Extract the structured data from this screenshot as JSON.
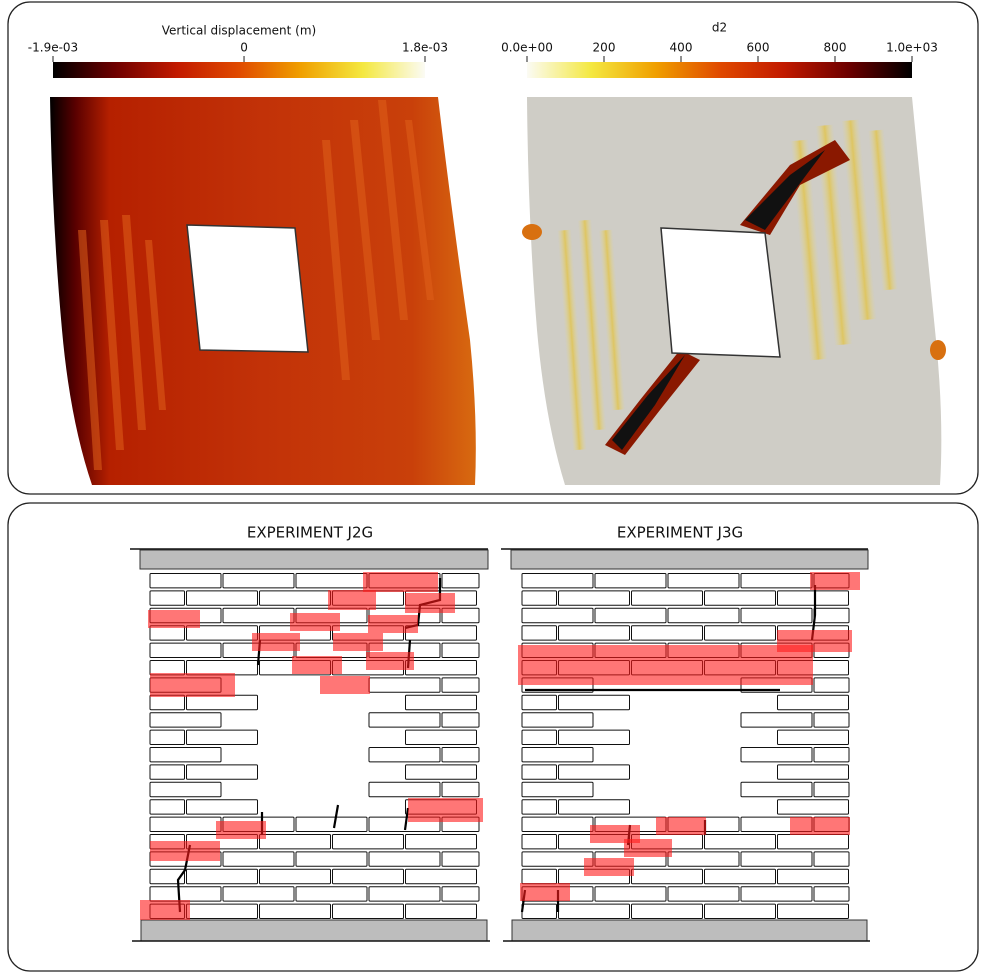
{
  "top_panel": {
    "colorbars": [
      {
        "title": "Vertical displacement (m)",
        "range": [
          -0.0019,
          0.0018
        ],
        "ticks": [
          {
            "value": -0.0019,
            "label": "-1.9e-03"
          },
          0,
          {
            "value": 0.0018,
            "label": "1.8e-03"
          }
        ],
        "colors": [
          "#000000",
          "#6e0000",
          "#c21a00",
          "#e04a00",
          "#f0a000",
          "#f4e840",
          "#fbfbf4"
        ]
      },
      {
        "title": "d2",
        "range": [
          0,
          1000
        ],
        "ticks": [
          {
            "value": 0,
            "label": "0.0e+00"
          },
          200,
          400,
          600,
          800,
          {
            "value": 1000,
            "label": "1.0e+03"
          }
        ],
        "colors": [
          "#fbfbf4",
          "#f4e840",
          "#f0a000",
          "#e04a00",
          "#c21a00",
          "#6e0000",
          "#000000"
        ]
      }
    ]
  },
  "bottom_panel": {
    "experiments": [
      {
        "title": "EXPERIMENT J2G"
      },
      {
        "title": "EXPERIMENT J3G"
      }
    ]
  }
}
